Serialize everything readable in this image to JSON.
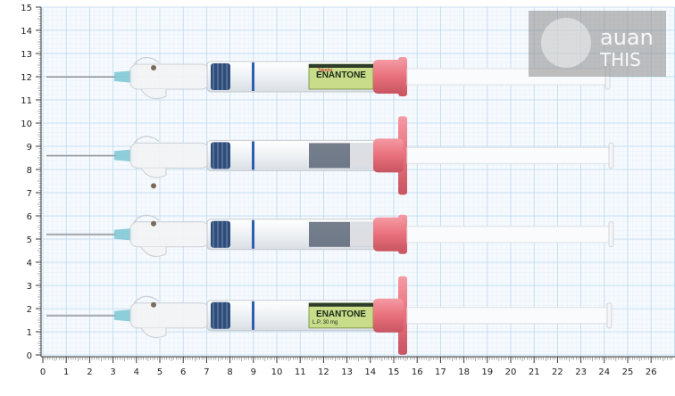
{
  "photo": {
    "subject": "syringes",
    "y_axis_labels": [
      "0",
      "1",
      "2",
      "3",
      "4",
      "5",
      "6",
      "7",
      "8",
      "9",
      "10",
      "11",
      "12",
      "13",
      "14",
      "15"
    ],
    "x_axis_labels": [
      "0",
      "1",
      "2",
      "3",
      "4",
      "5",
      "6",
      "7",
      "8",
      "9",
      "10",
      "11",
      "12",
      "13",
      "14",
      "15",
      "16",
      "17",
      "18",
      "19",
      "20",
      "21",
      "22",
      "23",
      "24",
      "25",
      "26",
      "2"
    ],
    "watermark": {
      "line1": "auan",
      "line2": "THIS"
    },
    "syringes": [
      {
        "id": "s1",
        "level_cm": 12.0,
        "brand": "ENANTONE",
        "brand_small": "Takeda",
        "label_line": "",
        "label_line2": ""
      },
      {
        "id": "s2",
        "level_cm": 8.6,
        "brand": "",
        "brand_small": "",
        "label_line": "",
        "label_line2": ""
      },
      {
        "id": "s3",
        "level_cm": 5.2,
        "brand": "",
        "brand_small": "",
        "label_line": "",
        "label_line2": ""
      },
      {
        "id": "s4",
        "level_cm": 1.7,
        "brand": "ENANTONE",
        "brand_small": "",
        "label_line": "L.P. 30 mg",
        "label_line2": ""
      }
    ],
    "colors": {
      "grid": "#bcd9ee",
      "grid_major": "#8fbfe0",
      "plunger": "#e8707c",
      "barrel_band": "#2e4d7a",
      "label_green": "#c8dc8a",
      "needle_hub": "#7ac6d3"
    }
  }
}
